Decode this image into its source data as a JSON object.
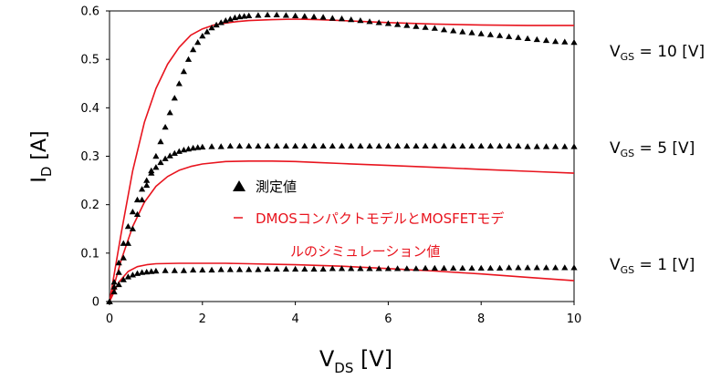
{
  "chart_data": {
    "type": "line",
    "xlabel_main": "V",
    "xlabel_sub": "DS",
    "xlabel_unit": "[V]",
    "ylabel_main": "I",
    "ylabel_sub": "D",
    "ylabel_unit": "[A]",
    "xlim": [
      0,
      10
    ],
    "ylim": [
      0,
      0.6
    ],
    "x_ticks": [
      "0",
      "2",
      "4",
      "6",
      "8",
      "10"
    ],
    "y_ticks": [
      "0",
      "0.1",
      "0.2",
      "0.3",
      "0.4",
      "0.5",
      "0.6"
    ],
    "grid": false,
    "legend": {
      "measured_label": "測定値",
      "sim_label_line1": "DMOSコンパクトモデルとMOSFETモデ",
      "sim_label_line2": "ルのシミュレーション値",
      "sim_color": "#e8141e",
      "measured_color": "#000000",
      "placement": "center"
    },
    "annotations": [
      {
        "main": "V",
        "sub": "GS",
        "rest": " = 10 [V]",
        "at_y": 0.52
      },
      {
        "main": "V",
        "sub": "GS",
        "rest": " = 5 [V]",
        "at_y": 0.315
      },
      {
        "main": "V",
        "sub": "GS",
        "rest": " = 1 [V]",
        "at_y": 0.075
      }
    ],
    "series": [
      {
        "name": "測定値",
        "kind": "measured",
        "group": "VGS=10",
        "x": [
          0,
          0.1,
          0.2,
          0.3,
          0.4,
          0.5,
          0.6,
          0.7,
          0.8,
          0.9,
          1.0,
          1.1,
          1.2,
          1.3,
          1.4,
          1.5,
          1.6,
          1.7,
          1.8,
          1.9,
          2.0,
          2.1,
          2.2,
          2.3,
          2.4,
          2.5,
          2.6,
          2.7,
          2.8,
          2.9,
          3.0,
          3.2,
          3.4,
          3.6,
          3.8,
          4.0,
          4.2,
          4.4,
          4.6,
          4.8,
          5.0,
          5.2,
          5.4,
          5.6,
          5.8,
          6.0,
          6.2,
          6.4,
          6.6,
          6.8,
          7.0,
          7.2,
          7.4,
          7.6,
          7.8,
          8.0,
          8.2,
          8.4,
          8.6,
          8.8,
          9.0,
          9.2,
          9.4,
          9.6,
          9.8,
          10.0
        ],
        "y": [
          0,
          0.03,
          0.06,
          0.09,
          0.12,
          0.15,
          0.18,
          0.21,
          0.24,
          0.27,
          0.3,
          0.33,
          0.36,
          0.39,
          0.42,
          0.45,
          0.475,
          0.5,
          0.52,
          0.535,
          0.548,
          0.557,
          0.565,
          0.571,
          0.576,
          0.58,
          0.583,
          0.586,
          0.588,
          0.589,
          0.59,
          0.591,
          0.592,
          0.592,
          0.591,
          0.59,
          0.589,
          0.588,
          0.587,
          0.585,
          0.584,
          0.582,
          0.58,
          0.578,
          0.576,
          0.574,
          0.572,
          0.57,
          0.568,
          0.566,
          0.564,
          0.561,
          0.559,
          0.557,
          0.555,
          0.553,
          0.551,
          0.549,
          0.547,
          0.545,
          0.543,
          0.541,
          0.539,
          0.537,
          0.536,
          0.535
        ]
      },
      {
        "name": "DMOSコンパクトモデルとMOSFETモデルのシミュレーション値",
        "kind": "sim",
        "group": "VGS=10",
        "x": [
          0,
          0.25,
          0.5,
          0.75,
          1.0,
          1.25,
          1.5,
          1.75,
          2.0,
          2.25,
          2.5,
          2.75,
          3.0,
          3.5,
          4.0,
          4.5,
          5.0,
          5.5,
          6.0,
          7.0,
          8.0,
          9.0,
          10.0
        ],
        "y": [
          0,
          0.14,
          0.27,
          0.37,
          0.44,
          0.49,
          0.525,
          0.55,
          0.563,
          0.571,
          0.575,
          0.578,
          0.58,
          0.582,
          0.583,
          0.582,
          0.58,
          0.578,
          0.576,
          0.573,
          0.571,
          0.57,
          0.57
        ]
      },
      {
        "name": "測定値",
        "kind": "measured",
        "group": "VGS=5",
        "x": [
          0,
          0.1,
          0.2,
          0.3,
          0.4,
          0.5,
          0.6,
          0.7,
          0.8,
          0.9,
          1.0,
          1.1,
          1.2,
          1.3,
          1.4,
          1.5,
          1.6,
          1.7,
          1.8,
          1.9,
          2.0,
          2.2,
          2.4,
          2.6,
          2.8,
          3.0,
          3.2,
          3.4,
          3.6,
          3.8,
          4.0,
          4.2,
          4.4,
          4.6,
          4.8,
          5.0,
          5.2,
          5.4,
          5.6,
          5.8,
          6.0,
          6.2,
          6.4,
          6.6,
          6.8,
          7.0,
          7.2,
          7.4,
          7.6,
          7.8,
          8.0,
          8.2,
          8.4,
          8.6,
          8.8,
          9.0,
          9.2,
          9.4,
          9.6,
          9.8,
          10.0
        ],
        "y": [
          0,
          0.04,
          0.08,
          0.12,
          0.155,
          0.185,
          0.21,
          0.232,
          0.25,
          0.265,
          0.277,
          0.287,
          0.295,
          0.301,
          0.306,
          0.31,
          0.313,
          0.315,
          0.317,
          0.318,
          0.319,
          0.32,
          0.32,
          0.321,
          0.321,
          0.321,
          0.321,
          0.321,
          0.321,
          0.321,
          0.321,
          0.321,
          0.321,
          0.321,
          0.321,
          0.321,
          0.321,
          0.321,
          0.321,
          0.321,
          0.321,
          0.321,
          0.321,
          0.321,
          0.321,
          0.321,
          0.321,
          0.321,
          0.321,
          0.321,
          0.321,
          0.321,
          0.321,
          0.321,
          0.321,
          0.32,
          0.32,
          0.32,
          0.32,
          0.32,
          0.32
        ]
      },
      {
        "name": "DMOSコンパクトモデルとMOSFETモデルのシミュレーション値",
        "kind": "sim",
        "group": "VGS=5",
        "x": [
          0,
          0.25,
          0.5,
          0.75,
          1.0,
          1.25,
          1.5,
          1.75,
          2.0,
          2.5,
          3.0,
          3.5,
          4.0,
          4.5,
          5.0,
          6.0,
          7.0,
          8.0,
          9.0,
          10.0
        ],
        "y": [
          0,
          0.085,
          0.155,
          0.205,
          0.238,
          0.258,
          0.271,
          0.279,
          0.284,
          0.289,
          0.29,
          0.29,
          0.289,
          0.287,
          0.285,
          0.281,
          0.277,
          0.273,
          0.269,
          0.265
        ]
      },
      {
        "name": "測定値",
        "kind": "measured",
        "group": "VGS=1",
        "x": [
          0,
          0.1,
          0.2,
          0.3,
          0.4,
          0.5,
          0.6,
          0.7,
          0.8,
          0.9,
          1.0,
          1.2,
          1.4,
          1.6,
          1.8,
          2.0,
          2.2,
          2.4,
          2.6,
          2.8,
          3.0,
          3.2,
          3.4,
          3.6,
          3.8,
          4.0,
          4.2,
          4.4,
          4.6,
          4.8,
          5.0,
          5.2,
          5.4,
          5.6,
          5.8,
          6.0,
          6.2,
          6.4,
          6.6,
          6.8,
          7.0,
          7.2,
          7.4,
          7.6,
          7.8,
          8.0,
          8.2,
          8.4,
          8.6,
          8.8,
          9.0,
          9.2,
          9.4,
          9.6,
          9.8,
          10.0
        ],
        "y": [
          0,
          0.02,
          0.035,
          0.045,
          0.051,
          0.055,
          0.058,
          0.06,
          0.061,
          0.062,
          0.063,
          0.064,
          0.064,
          0.064,
          0.065,
          0.065,
          0.065,
          0.066,
          0.066,
          0.066,
          0.066,
          0.066,
          0.067,
          0.067,
          0.067,
          0.067,
          0.067,
          0.067,
          0.067,
          0.068,
          0.068,
          0.068,
          0.068,
          0.068,
          0.068,
          0.068,
          0.068,
          0.068,
          0.068,
          0.069,
          0.069,
          0.069,
          0.069,
          0.069,
          0.069,
          0.069,
          0.069,
          0.069,
          0.07,
          0.07,
          0.07,
          0.07,
          0.07,
          0.07,
          0.07,
          0.07
        ]
      },
      {
        "name": "DMOSコンパクトモデルとMOSFETモデルのシミュレーション値",
        "kind": "sim",
        "group": "VGS=1",
        "x": [
          0,
          0.2,
          0.4,
          0.6,
          0.8,
          1.0,
          1.5,
          2.0,
          2.5,
          3.0,
          3.5,
          4.0,
          5.0,
          6.0,
          7.0,
          8.0,
          9.0,
          10.0
        ],
        "y": [
          0,
          0.04,
          0.062,
          0.072,
          0.076,
          0.078,
          0.079,
          0.079,
          0.079,
          0.078,
          0.077,
          0.076,
          0.073,
          0.068,
          0.063,
          0.057,
          0.05,
          0.043
        ]
      }
    ]
  }
}
